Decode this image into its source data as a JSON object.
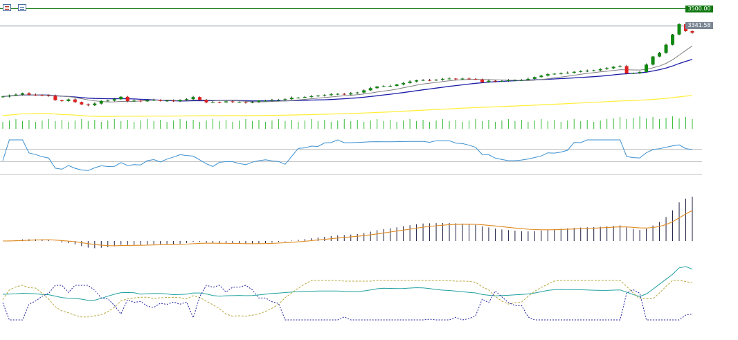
{
  "toolbar": {
    "icons": [
      "candles-settings-icon",
      "chart-properties-icon"
    ]
  },
  "price_axis": {
    "resistance_label": "3500.00",
    "last_price_label": "3341.58"
  },
  "colors": {
    "bull_candle": "#108810",
    "bear_candle": "#e02020",
    "ma_fast": "#808080",
    "ma_mid": "#1a1aa8",
    "ma_slow": "#ffee33",
    "resistance_line": "#117711",
    "volume": "#33bb33",
    "rsi": "#3a8fd0",
    "macd_hist": "#1a1a40",
    "macd_signal": "#e08a20",
    "stoch_main": "#20a0a0",
    "stoch_signal": "#b8a840",
    "stoch_third": "#2020a0"
  },
  "chart_data": {
    "type": "line",
    "title": "",
    "panels": [
      "price",
      "volume",
      "rsi",
      "macd",
      "oscillator"
    ],
    "close_series": [
      2908,
      2915,
      2921,
      2930,
      2920,
      2918,
      2915,
      2913,
      2883,
      2877,
      2888,
      2870,
      2854,
      2848,
      2860,
      2878,
      2880,
      2890,
      2906,
      2876,
      2880,
      2875,
      2883,
      2885,
      2878,
      2880,
      2876,
      2885,
      2890,
      2904,
      2885,
      2868,
      2870,
      2868,
      2875,
      2870,
      2870,
      2866,
      2871,
      2880,
      2880,
      2884,
      2886,
      2890,
      2900,
      2900,
      2905,
      2910,
      2914,
      2917,
      2923,
      2926,
      2922,
      2930,
      2935,
      2950,
      2965,
      2976,
      2978,
      2980,
      2990,
      3000,
      3010,
      3018,
      3020,
      3018,
      3022,
      3028,
      3030,
      3025,
      3030,
      3028,
      3024,
      3006,
      3015,
      3010,
      3014,
      3018,
      3020,
      3020,
      3028,
      3040,
      3050,
      3060,
      3063,
      3066,
      3070,
      3076,
      3080,
      3083,
      3086,
      3094,
      3100,
      3110,
      3115,
      3065,
      3067,
      3075,
      3125,
      3180,
      3205,
      3260,
      3330,
      3400,
      3353,
      3341.58
    ],
    "resistance": 3500.0,
    "last_price": 3341.58
  }
}
